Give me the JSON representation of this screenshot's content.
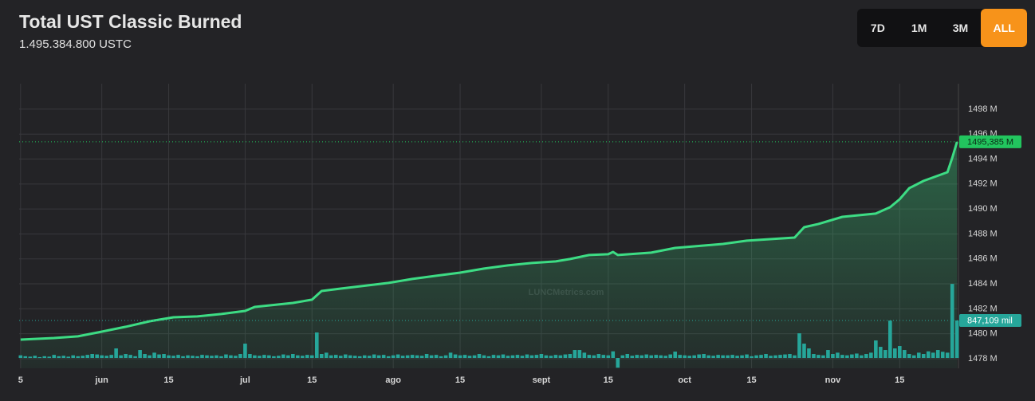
{
  "chart_data": {
    "type": "line",
    "title": "Total UST Classic Burned",
    "subtitle": "1.495.384.800 USTC",
    "range_buttons": [
      "7D",
      "1M",
      "3M",
      "ALL"
    ],
    "active_range": "ALL",
    "watermark": "LUNCMetrics.com",
    "xlim": [
      -17.3,
      179.3
    ],
    "xticks": [
      {
        "value": -17,
        "label": "5"
      },
      {
        "value": 0,
        "label": "jun"
      },
      {
        "value": 14,
        "label": "15"
      },
      {
        "value": 30,
        "label": "jul"
      },
      {
        "value": 44,
        "label": "15"
      },
      {
        "value": 61,
        "label": "ago"
      },
      {
        "value": 75,
        "label": "15"
      },
      {
        "value": 92,
        "label": "sept"
      },
      {
        "value": 106,
        "label": "15"
      },
      {
        "value": 122,
        "label": "oct"
      },
      {
        "value": 136,
        "label": "15"
      },
      {
        "value": 153,
        "label": "nov"
      },
      {
        "value": 167,
        "label": "15"
      }
    ],
    "ylim": [
      1477.23,
      1500.04
    ],
    "yticks": [
      {
        "value": 1478,
        "label": "1478 M"
      },
      {
        "value": 1480,
        "label": "1480 M"
      },
      {
        "value": 1482,
        "label": "1482 M"
      },
      {
        "value": 1484,
        "label": "1484 M"
      },
      {
        "value": 1486,
        "label": "1486 M"
      },
      {
        "value": 1488,
        "label": "1488 M"
      },
      {
        "value": 1490,
        "label": "1490 M"
      },
      {
        "value": 1492,
        "label": "1492 M"
      },
      {
        "value": 1494,
        "label": "1494 M"
      },
      {
        "value": 1496,
        "label": "1496 M"
      },
      {
        "value": 1498,
        "label": "1498 M"
      }
    ],
    "y2lim": [
      -234,
      6200
    ],
    "grid": true,
    "series": [
      {
        "type": "line",
        "color": "#3ddc84",
        "area": true,
        "x": [
          -17,
          -10,
          -5,
          0,
          5,
          10,
          15,
          20,
          25,
          30,
          32,
          40,
          44,
          46,
          50,
          60,
          65,
          70,
          75,
          80,
          85,
          90,
          95,
          98,
          102,
          106,
          107,
          108,
          115,
          120,
          130,
          135,
          145,
          147,
          150,
          155,
          162,
          165,
          167,
          169,
          172,
          177,
          178,
          179
        ],
        "values": [
          1479.53,
          1479.66,
          1479.79,
          1480.17,
          1480.56,
          1481.0,
          1481.32,
          1481.39,
          1481.58,
          1481.83,
          1482.15,
          1482.47,
          1482.73,
          1483.43,
          1483.62,
          1484.07,
          1484.39,
          1484.65,
          1484.9,
          1485.22,
          1485.48,
          1485.67,
          1485.8,
          1485.99,
          1486.31,
          1486.37,
          1486.56,
          1486.31,
          1486.5,
          1486.88,
          1487.2,
          1487.46,
          1487.71,
          1488.54,
          1488.8,
          1489.37,
          1489.63,
          1490.14,
          1490.78,
          1491.67,
          1492.25,
          1492.95,
          1494.1,
          1495.385
        ]
      },
      {
        "type": "bar",
        "color": "#26a69a",
        "axis": "y2",
        "x": [
          -17,
          -16,
          -15,
          -14,
          -13,
          -12,
          -11,
          -10,
          -9,
          -8,
          -7,
          -6,
          -5,
          -4,
          -3,
          -2,
          -1,
          0,
          1,
          2,
          3,
          4,
          5,
          6,
          7,
          8,
          9,
          10,
          11,
          12,
          13,
          14,
          15,
          16,
          17,
          18,
          19,
          20,
          21,
          22,
          23,
          24,
          25,
          26,
          27,
          28,
          29,
          30,
          31,
          32,
          33,
          34,
          35,
          36,
          37,
          38,
          39,
          40,
          41,
          42,
          43,
          44,
          45,
          46,
          47,
          48,
          49,
          50,
          51,
          52,
          53,
          54,
          55,
          56,
          57,
          58,
          59,
          60,
          61,
          62,
          63,
          64,
          65,
          66,
          67,
          68,
          69,
          70,
          71,
          72,
          73,
          74,
          75,
          76,
          77,
          78,
          79,
          80,
          81,
          82,
          83,
          84,
          85,
          86,
          87,
          88,
          89,
          90,
          91,
          92,
          93,
          94,
          95,
          96,
          97,
          98,
          99,
          100,
          101,
          102,
          103,
          104,
          105,
          106,
          107,
          108,
          109,
          110,
          111,
          112,
          113,
          114,
          115,
          116,
          117,
          118,
          119,
          120,
          121,
          122,
          123,
          124,
          125,
          126,
          127,
          128,
          129,
          130,
          131,
          132,
          133,
          134,
          135,
          136,
          137,
          138,
          139,
          140,
          141,
          142,
          143,
          144,
          145,
          146,
          147,
          148,
          149,
          150,
          151,
          152,
          153,
          154,
          155,
          156,
          157,
          158,
          159,
          160,
          161,
          162,
          163,
          164,
          165,
          166,
          167,
          168,
          169,
          170,
          171,
          172,
          173,
          174,
          175,
          176,
          177,
          178,
          179
        ],
        "values": [
          60,
          40,
          30,
          50,
          20,
          40,
          30,
          70,
          40,
          50,
          30,
          60,
          40,
          50,
          70,
          90,
          80,
          60,
          50,
          70,
          216,
          60,
          90,
          70,
          40,
          180,
          90,
          60,
          120,
          80,
          90,
          60,
          50,
          70,
          40,
          60,
          50,
          40,
          70,
          60,
          50,
          60,
          40,
          80,
          60,
          50,
          90,
          324,
          90,
          60,
          50,
          70,
          60,
          40,
          50,
          80,
          60,
          90,
          60,
          50,
          70,
          60,
          576,
          90,
          120,
          60,
          70,
          50,
          80,
          60,
          50,
          40,
          60,
          50,
          80,
          60,
          70,
          40,
          60,
          80,
          50,
          60,
          70,
          60,
          50,
          90,
          60,
          70,
          40,
          60,
          120,
          80,
          60,
          70,
          50,
          60,
          90,
          60,
          40,
          70,
          60,
          80,
          50,
          60,
          70,
          50,
          80,
          60,
          70,
          90,
          60,
          50,
          70,
          60,
          80,
          90,
          180,
          180,
          120,
          70,
          60,
          90,
          70,
          60,
          150,
          -220,
          60,
          90,
          50,
          70,
          60,
          80,
          60,
          70,
          60,
          50,
          80,
          144,
          70,
          60,
          50,
          60,
          80,
          90,
          60,
          50,
          70,
          60,
          60,
          70,
          50,
          60,
          80,
          40,
          60,
          70,
          90,
          50,
          60,
          70,
          80,
          90,
          60,
          558,
          324,
          216,
          90,
          70,
          60,
          180,
          90,
          120,
          70,
          60,
          80,
          100,
          60,
          90,
          120,
          396,
          252,
          180,
          846,
          216,
          270,
          180,
          90,
          60,
          120,
          90,
          150,
          120,
          180,
          140,
          120,
          1674,
          847.109
        ]
      }
    ],
    "annotations": [
      {
        "text": "1495,385 M",
        "value": 1495.385,
        "axis": "y",
        "color": "#22c55e"
      },
      {
        "text": "847,109 mil",
        "value": 847.109,
        "axis": "y2",
        "color": "#26a69a"
      }
    ]
  }
}
